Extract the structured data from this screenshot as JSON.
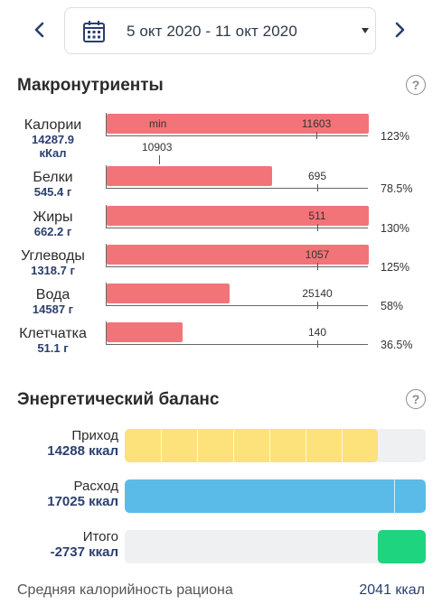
{
  "header": {
    "date_range": "5 окт 2020 - 11 окт 2020",
    "prev_icon": "chevron-left-icon",
    "next_icon": "chevron-right-icon",
    "calendar_icon": "calendar-icon",
    "accent_color": "#2a3f6e"
  },
  "macros": {
    "title": "Макронутриенты",
    "help": "?",
    "bar_color": "#f27478",
    "min_label": "min",
    "items": [
      {
        "name": "Калории",
        "value": "14287.9",
        "unit": "кКал",
        "norm": "11603",
        "min_value": "10903",
        "percent": "123%",
        "fill": 1.0
      },
      {
        "name": "Белки",
        "value": "545.4 г",
        "norm": "695",
        "percent": "78.5%",
        "fill": 0.63
      },
      {
        "name": "Жиры",
        "value": "662.2 г",
        "norm": "511",
        "percent": "130%",
        "fill": 1.0
      },
      {
        "name": "Углеводы",
        "value": "1318.7 г",
        "norm": "1057",
        "percent": "125%",
        "fill": 1.0
      },
      {
        "name": "Вода",
        "value": "14587 г",
        "norm": "25140",
        "percent": "58%",
        "fill": 0.47
      },
      {
        "name": "Клетчатка",
        "value": "51.1 г",
        "norm": "140",
        "percent": "36.5%",
        "fill": 0.29
      }
    ]
  },
  "energy": {
    "title": "Энергетический баланс",
    "help": "?",
    "rows": [
      {
        "name": "Приход",
        "value": "14288 ккал",
        "color": "#fde17a",
        "fill_start": 0.0,
        "fill": 0.84,
        "segments": 7
      },
      {
        "name": "Расход",
        "value": "17025 ккал",
        "color": "#5bbbe8",
        "fill_start": 0.0,
        "fill": 1.0,
        "segments": 1
      },
      {
        "name": "Итого",
        "value": "-2737 ккал",
        "color": "#1fd47f",
        "fill_start": 0.84,
        "fill": 0.16,
        "segments": 1
      }
    ]
  },
  "average": {
    "label": "Средняя калорийность рациона",
    "value": "2041 ккал"
  }
}
